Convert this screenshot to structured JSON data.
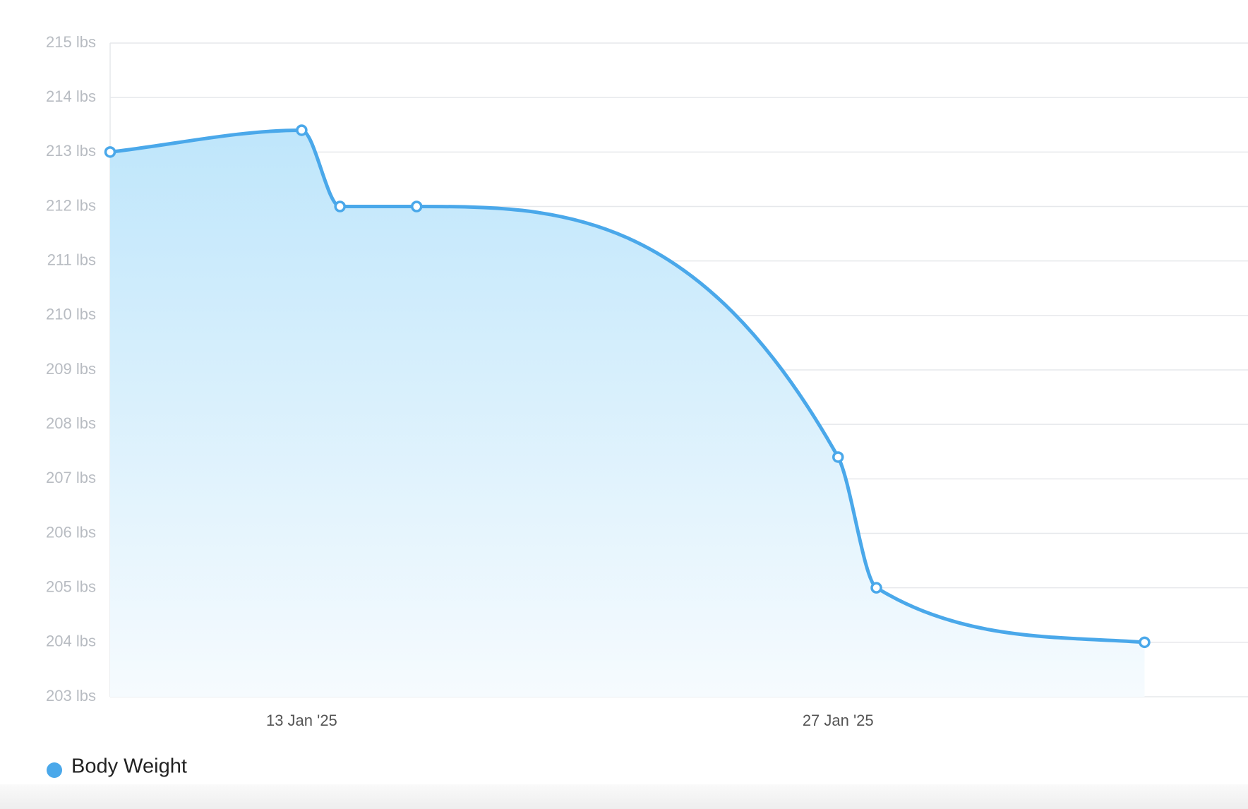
{
  "chart_data": {
    "type": "area",
    "x": [
      "2025-01-08",
      "2025-01-13",
      "2025-01-14",
      "2025-01-16",
      "2025-01-27",
      "2025-01-28",
      "2025-02-04"
    ],
    "series": [
      {
        "name": "Body Weight",
        "color": "#4aa8ea",
        "values": [
          213,
          213.4,
          212,
          212,
          207.4,
          205,
          204
        ]
      }
    ],
    "xlim": [
      "2025-01-08",
      "2025-02-06"
    ],
    "xticks": [
      {
        "value": "2025-01-13",
        "label": "13 Jan '25"
      },
      {
        "value": "2025-01-27",
        "label": "27 Jan '25"
      }
    ],
    "ylim": [
      203,
      215
    ],
    "yticks": [
      {
        "value": 203,
        "label": "203 lbs"
      },
      {
        "value": 204,
        "label": "204 lbs"
      },
      {
        "value": 205,
        "label": "205 lbs"
      },
      {
        "value": 206,
        "label": "206 lbs"
      },
      {
        "value": 207,
        "label": "207 lbs"
      },
      {
        "value": 208,
        "label": "208 lbs"
      },
      {
        "value": 209,
        "label": "209 lbs"
      },
      {
        "value": 210,
        "label": "210 lbs"
      },
      {
        "value": 211,
        "label": "211 lbs"
      },
      {
        "value": 212,
        "label": "212 lbs"
      },
      {
        "value": 213,
        "label": "213 lbs"
      },
      {
        "value": 214,
        "label": "214 lbs"
      },
      {
        "value": 215,
        "label": "215 lbs"
      }
    ],
    "grid": true
  }
}
